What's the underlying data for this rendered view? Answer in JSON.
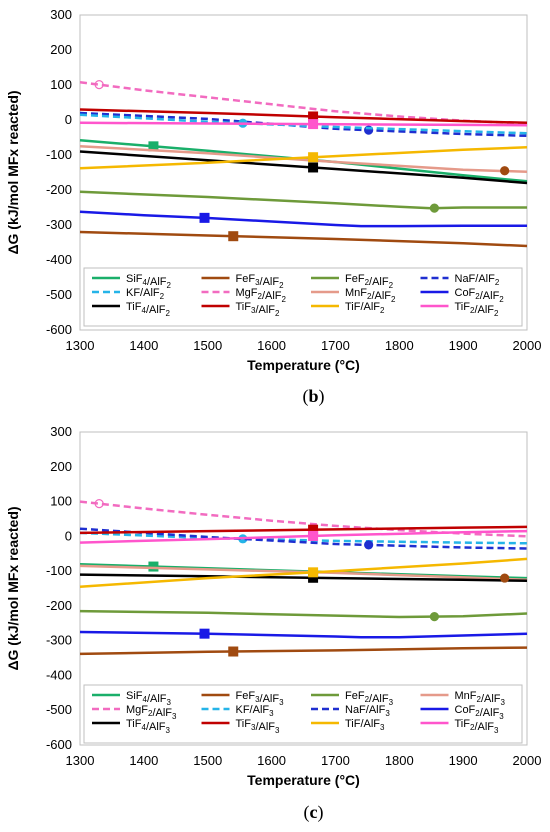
{
  "chart_data": [
    {
      "type": "line",
      "panel_label": "(b)",
      "panel_letter": "b",
      "xlabel": "Temperature (°C)",
      "ylabel": "ΔG (kJ/mol MFx reacted)",
      "xlim": [
        1300,
        2000
      ],
      "ylim": [
        -600,
        300
      ],
      "xticks": [
        1300,
        1400,
        1500,
        1600,
        1700,
        1800,
        1900,
        2000
      ],
      "yticks": [
        -600,
        -500,
        -400,
        -300,
        -200,
        -100,
        0,
        100,
        200,
        300
      ],
      "grid": false,
      "legend_position": "bottom",
      "series": [
        {
          "name": "SiF4/AlF2",
          "base": "SiF",
          "sub1": "4",
          "mid": "/AlF",
          "sub2": "2",
          "color": "#1aaf6a",
          "dash": "",
          "marker": "square",
          "filled": true,
          "marker_at": 1415,
          "x": [
            1300,
            1500,
            1700,
            1900,
            2000
          ],
          "y": [
            -58,
            -88,
            -120,
            -158,
            -175
          ]
        },
        {
          "name": "FeF3/AlF2",
          "base": "FeF",
          "sub1": "3",
          "mid": "/AlF",
          "sub2": "2",
          "color": "#a04a10",
          "dash": "",
          "marker": "square",
          "filled": true,
          "marker_at": 1540,
          "x": [
            1300,
            1500,
            1700,
            1900,
            2000
          ],
          "y": [
            -320,
            -330,
            -340,
            -352,
            -360
          ]
        },
        {
          "name": "FeF2/AlF2",
          "base": "FeF",
          "sub1": "2",
          "mid": "/AlF",
          "sub2": "2",
          "color": "#6e9a3a",
          "dash": "",
          "marker": "circle",
          "filled": true,
          "marker_at": 1855,
          "x": [
            1300,
            1500,
            1700,
            1800,
            1850,
            1900,
            2000
          ],
          "y": [
            -205,
            -220,
            -238,
            -248,
            -252,
            -250,
            -250
          ]
        },
        {
          "name": "NaF/AlF2",
          "base": "NaF/AlF",
          "sub1": "",
          "mid": "",
          "sub2": "2",
          "color": "#1f2fd0",
          "dash": "7,4",
          "marker": "circle",
          "filled": true,
          "marker_at": 1752,
          "x": [
            1300,
            1500,
            1700,
            1900,
            2000
          ],
          "y": [
            20,
            3,
            -25,
            -40,
            -45
          ]
        },
        {
          "name": "KF/AlF2",
          "base": "KF/AlF",
          "sub1": "",
          "mid": "",
          "sub2": "2",
          "color": "#25b4e8",
          "dash": "7,4",
          "marker": "circle",
          "filled": true,
          "marker_at": 1555,
          "x": [
            1300,
            1500,
            1700,
            1900,
            2000
          ],
          "y": [
            15,
            -5,
            -20,
            -32,
            -38
          ]
        },
        {
          "name": "MgF2/AlF2",
          "base": "MgF",
          "sub1": "2",
          "mid": "/AlF",
          "sub2": "2",
          "color": "#f26bc0",
          "dash": "7,4",
          "marker": "circle",
          "filled": false,
          "marker_at": 1330,
          "x": [
            1300,
            1400,
            1500,
            1600,
            1700,
            1800,
            1900,
            2000
          ],
          "y": [
            108,
            85,
            65,
            45,
            25,
            10,
            -2,
            -10
          ]
        },
        {
          "name": "MnF2/AlF2",
          "base": "MnF",
          "sub1": "2",
          "mid": "/AlF",
          "sub2": "2",
          "color": "#e59a8a",
          "dash": "",
          "marker": "circle",
          "filled": false,
          "marker_at": null,
          "x": [
            1300,
            1500,
            1700,
            1900,
            2000
          ],
          "y": [
            -75,
            -95,
            -120,
            -142,
            -148
          ]
        },
        {
          "name": "CoF2/AlF2",
          "base": "CoF",
          "sub1": "2",
          "mid": "/AlF",
          "sub2": "2",
          "color": "#1919e6",
          "dash": "",
          "marker": "square",
          "filled": true,
          "marker_at": 1495,
          "x": [
            1300,
            1400,
            1500,
            1600,
            1700,
            1740,
            1800,
            1900,
            2000
          ],
          "y": [
            -262,
            -272,
            -280,
            -290,
            -300,
            -303,
            -303,
            -302,
            -302
          ]
        },
        {
          "name": "TiF4/AlF2",
          "base": "TiF",
          "sub1": "4",
          "mid": "/AlF",
          "sub2": "2",
          "color": "#000000",
          "dash": "",
          "marker": "square",
          "filled": true,
          "marker_at": 1665,
          "x": [
            1300,
            1500,
            1700,
            1900,
            2000
          ],
          "y": [
            -90,
            -115,
            -140,
            -165,
            -180
          ]
        },
        {
          "name": "TiF3/AlF2",
          "base": "TiF",
          "sub1": "3",
          "mid": "/AlF",
          "sub2": "2",
          "color": "#c00000",
          "dash": "",
          "marker": "square",
          "filled": true,
          "marker_at": 1665,
          "x": [
            1300,
            1500,
            1700,
            1900,
            2000
          ],
          "y": [
            30,
            20,
            8,
            -3,
            -8
          ]
        },
        {
          "name": "TiF/AlF2",
          "base": "TiF/AlF",
          "sub1": "",
          "mid": "",
          "sub2": "2",
          "color": "#f5b800",
          "dash": "",
          "marker": "square",
          "filled": true,
          "marker_at": 1665,
          "x": [
            1300,
            1500,
            1700,
            1900,
            2000
          ],
          "y": [
            -138,
            -122,
            -103,
            -85,
            -78
          ]
        },
        {
          "name": "TiF2/AlF2",
          "base": "TiF",
          "sub1": "2",
          "mid": "/AlF",
          "sub2": "2",
          "color": "#ff55cc",
          "dash": "",
          "marker": "square",
          "filled": true,
          "marker_at": 1665,
          "x": [
            1300,
            1500,
            1700,
            1900,
            2000
          ],
          "y": [
            -8,
            -10,
            -12,
            -14,
            -15
          ]
        },
        {
          "name": "MnF2/AlF2 marker",
          "base": "",
          "sub1": "",
          "mid": "",
          "sub2": "",
          "color": "#a04a10",
          "dash": "",
          "marker": "circle",
          "filled": true,
          "marker_at": 1965,
          "hidden_line": true,
          "x": [
            1965
          ],
          "y": [
            -145
          ]
        }
      ]
    },
    {
      "type": "line",
      "panel_label": "(c)",
      "panel_letter": "c",
      "xlabel": "Temperature (°C)",
      "ylabel": "ΔG (kJ/mol MFx reacted)",
      "xlim": [
        1300,
        2000
      ],
      "ylim": [
        -600,
        300
      ],
      "xticks": [
        1300,
        1400,
        1500,
        1600,
        1700,
        1800,
        1900,
        2000
      ],
      "yticks": [
        -600,
        -500,
        -400,
        -300,
        -200,
        -100,
        0,
        100,
        200,
        300
      ],
      "grid": false,
      "legend_position": "bottom",
      "series": [
        {
          "name": "SiF4/AlF3",
          "base": "SiF",
          "sub1": "4",
          "mid": "/AlF",
          "sub2": "3",
          "color": "#1aaf6a",
          "dash": "",
          "marker": "square",
          "filled": true,
          "marker_at": 1415,
          "x": [
            1300,
            1500,
            1700,
            1900,
            2000
          ],
          "y": [
            -80,
            -92,
            -103,
            -115,
            -120
          ]
        },
        {
          "name": "FeF3/AlF3",
          "base": "FeF",
          "sub1": "3",
          "mid": "/AlF",
          "sub2": "3",
          "color": "#a04a10",
          "dash": "",
          "marker": "square",
          "filled": true,
          "marker_at": 1540,
          "x": [
            1300,
            1500,
            1700,
            1900,
            2000
          ],
          "y": [
            -338,
            -332,
            -328,
            -322,
            -320
          ]
        },
        {
          "name": "FeF2/AlF3",
          "base": "FeF",
          "sub1": "2",
          "mid": "/AlF",
          "sub2": "3",
          "color": "#6e9a3a",
          "dash": "",
          "marker": "circle",
          "filled": true,
          "marker_at": 1855,
          "x": [
            1300,
            1500,
            1700,
            1800,
            1900,
            2000
          ],
          "y": [
            -215,
            -220,
            -228,
            -232,
            -230,
            -222
          ]
        },
        {
          "name": "MnF2/AlF3",
          "base": "MnF",
          "sub1": "2",
          "mid": "/AlF",
          "sub2": "3",
          "color": "#e59a8a",
          "dash": "",
          "marker": "circle",
          "filled": false,
          "marker_at": null,
          "x": [
            1300,
            1500,
            1700,
            1900,
            2000
          ],
          "y": [
            -85,
            -95,
            -105,
            -118,
            -125
          ]
        },
        {
          "name": "MgF2/AlF3",
          "base": "MgF",
          "sub1": "2",
          "mid": "/AlF",
          "sub2": "3",
          "color": "#f26bc0",
          "dash": "7,4",
          "marker": "circle",
          "filled": false,
          "marker_at": 1330,
          "x": [
            1300,
            1400,
            1500,
            1600,
            1700,
            1800,
            1900,
            2000
          ],
          "y": [
            100,
            80,
            62,
            45,
            30,
            18,
            8,
            0
          ]
        },
        {
          "name": "KF/AlF3",
          "base": "KF/AlF",
          "sub1": "",
          "mid": "",
          "sub2": "3",
          "color": "#25b4e8",
          "dash": "7,4",
          "marker": "circle",
          "filled": true,
          "marker_at": 1555,
          "x": [
            1300,
            1500,
            1700,
            1900,
            2000
          ],
          "y": [
            10,
            -5,
            -13,
            -18,
            -20
          ]
        },
        {
          "name": "NaF/AlF3",
          "base": "NaF/AlF",
          "sub1": "",
          "mid": "",
          "sub2": "3",
          "color": "#1f2fd0",
          "dash": "7,4",
          "marker": "circle",
          "filled": true,
          "marker_at": 1752,
          "x": [
            1300,
            1500,
            1700,
            1900,
            2000
          ],
          "y": [
            22,
            -2,
            -22,
            -32,
            -35
          ]
        },
        {
          "name": "CoF2/AlF3",
          "base": "CoF",
          "sub1": "2",
          "mid": "/AlF",
          "sub2": "3",
          "color": "#1919e6",
          "dash": "",
          "marker": "square",
          "filled": true,
          "marker_at": 1495,
          "x": [
            1300,
            1500,
            1700,
            1740,
            1800,
            1900,
            2000
          ],
          "y": [
            -275,
            -280,
            -288,
            -290,
            -290,
            -285,
            -280
          ]
        },
        {
          "name": "TiF4/AlF3",
          "base": "TiF",
          "sub1": "4",
          "mid": "/AlF",
          "sub2": "3",
          "color": "#000000",
          "dash": "",
          "marker": "square",
          "filled": true,
          "marker_at": 1665,
          "x": [
            1300,
            1500,
            1700,
            1900,
            2000
          ],
          "y": [
            -110,
            -115,
            -120,
            -125,
            -128
          ]
        },
        {
          "name": "TiF3/AlF3",
          "base": "TiF",
          "sub1": "3",
          "mid": "/AlF",
          "sub2": "3",
          "color": "#c00000",
          "dash": "",
          "marker": "square",
          "filled": true,
          "marker_at": 1665,
          "x": [
            1300,
            1500,
            1700,
            1900,
            2000
          ],
          "y": [
            10,
            15,
            20,
            25,
            27
          ]
        },
        {
          "name": "TiF/AlF3",
          "base": "TiF/AlF",
          "sub1": "",
          "mid": "",
          "sub2": "3",
          "color": "#f5b800",
          "dash": "",
          "marker": "square",
          "filled": true,
          "marker_at": 1665,
          "x": [
            1300,
            1500,
            1700,
            1900,
            2000
          ],
          "y": [
            -145,
            -120,
            -100,
            -78,
            -65
          ]
        },
        {
          "name": "TiF2/AlF3",
          "base": "TiF",
          "sub1": "2",
          "mid": "/AlF",
          "sub2": "3",
          "color": "#ff55cc",
          "dash": "",
          "marker": "square",
          "filled": true,
          "marker_at": 1665,
          "x": [
            1300,
            1500,
            1700,
            1900,
            2000
          ],
          "y": [
            -18,
            -8,
            3,
            12,
            15
          ]
        },
        {
          "name": "MnF2/AlF3 marker",
          "base": "",
          "sub1": "",
          "mid": "",
          "sub2": "",
          "color": "#a04a10",
          "dash": "",
          "marker": "circle",
          "filled": true,
          "marker_at": 1965,
          "hidden_line": true,
          "x": [
            1965
          ],
          "y": [
            -120
          ]
        }
      ]
    }
  ]
}
